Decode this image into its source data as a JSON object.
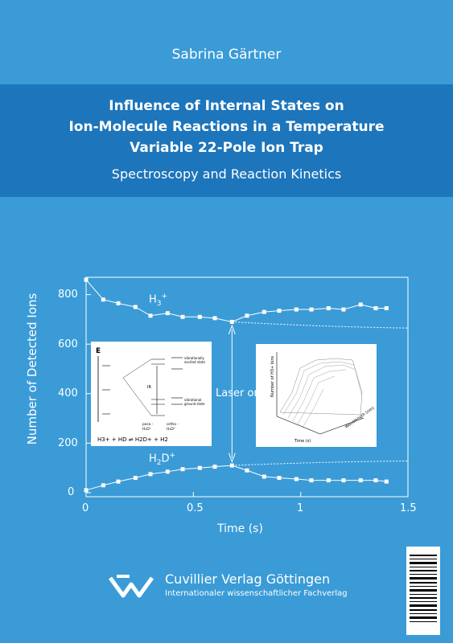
{
  "author": "Sabrina Gärtner",
  "title_lines": [
    "Influence of Internal States on",
    "Ion-Molecule Reactions in a Temperature",
    "Variable 22-Pole Ion Trap"
  ],
  "subtitle": "Spectroscopy and Reaction Kinetics",
  "colors": {
    "background": "#3a9bd7",
    "title_band": "#1d75bb",
    "text": "#ffffff"
  },
  "chart_data": {
    "type": "scatter",
    "xlabel": "Time (s)",
    "ylabel": "Number of Detected Ions",
    "xlim": [
      0,
      1.5
    ],
    "ylim": [
      0,
      900
    ],
    "x_ticks": [
      "0",
      "0.5",
      "1",
      "1.5"
    ],
    "y_ticks": [
      "0",
      "200",
      "400",
      "600",
      "800"
    ],
    "annotation": "Laser on",
    "series": [
      {
        "name": "H3+",
        "x": [
          0.0,
          0.08,
          0.15,
          0.23,
          0.3,
          0.38,
          0.45,
          0.53,
          0.6,
          0.68,
          0.75,
          0.83,
          0.9,
          0.98,
          1.05,
          1.13,
          1.2,
          1.28,
          1.35,
          1.4
        ],
        "y": [
          860,
          780,
          765,
          750,
          715,
          725,
          710,
          710,
          705,
          690,
          715,
          730,
          735,
          740,
          740,
          745,
          740,
          760,
          745,
          745
        ]
      },
      {
        "name": "H2D+",
        "x": [
          0.0,
          0.08,
          0.15,
          0.23,
          0.3,
          0.38,
          0.45,
          0.53,
          0.6,
          0.68,
          0.75,
          0.83,
          0.9,
          0.98,
          1.05,
          1.13,
          1.2,
          1.28,
          1.35,
          1.4
        ],
        "y": [
          10,
          30,
          45,
          60,
          75,
          85,
          95,
          100,
          105,
          110,
          90,
          65,
          60,
          55,
          50,
          50,
          50,
          50,
          50,
          45
        ]
      }
    ]
  },
  "inset_left": {
    "formula": "H3+ + HD ⇌ H2D+ + H2",
    "labels": [
      "vibrationally excited state",
      "vibrational ground state",
      "para - H2D+",
      "ortho - H2D+",
      "IR",
      "E"
    ]
  },
  "inset_right": {
    "xlabel": "Time (s)",
    "ylabel": "Number of H3+ Ions",
    "zlabel": "Wavelength (nm)"
  },
  "publisher": {
    "name": "Cuvillier Verlag Göttingen",
    "tagline": "Internationaler wissenschaftlicher Fachverlag"
  }
}
